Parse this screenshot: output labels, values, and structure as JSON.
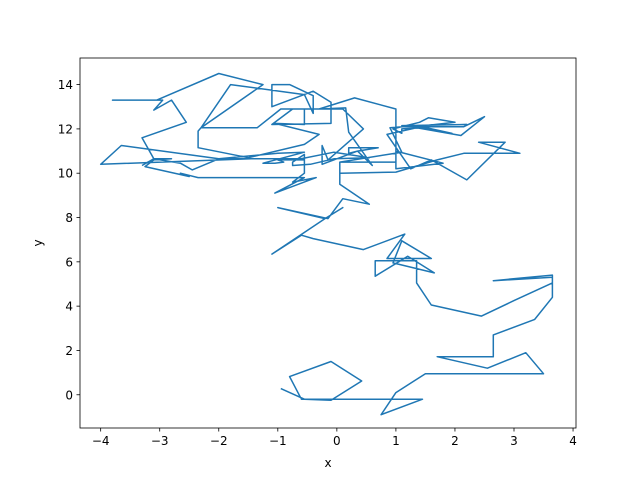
{
  "chart_data": {
    "type": "line",
    "title": "",
    "xlabel": "x",
    "ylabel": "y",
    "xlim": [
      -4.35,
      4.05
    ],
    "ylim": [
      -1.5,
      15.2
    ],
    "xticks": [
      -4,
      -3,
      -2,
      -1,
      0,
      1,
      2,
      3,
      4
    ],
    "yticks": [
      0,
      2,
      4,
      6,
      8,
      10,
      12,
      14
    ],
    "grid": false,
    "series": [
      {
        "color": "#1f77b4",
        "points": [
          [
            -0.95,
            0.28
          ],
          [
            -0.55,
            -0.2
          ],
          [
            -0.1,
            -0.25
          ],
          [
            0.42,
            0.62
          ],
          [
            -0.1,
            1.5
          ],
          [
            -0.8,
            0.82
          ],
          [
            -0.6,
            -0.2
          ],
          [
            1.45,
            -0.2
          ],
          [
            0.75,
            -0.9
          ],
          [
            1.0,
            0.1
          ],
          [
            1.5,
            0.95
          ],
          [
            3.5,
            0.95
          ],
          [
            3.2,
            1.9
          ],
          [
            2.55,
            1.2
          ],
          [
            1.7,
            1.72
          ],
          [
            2.65,
            1.72
          ],
          [
            2.65,
            2.7
          ],
          [
            3.35,
            3.4
          ],
          [
            3.65,
            4.4
          ],
          [
            3.65,
            5.3
          ],
          [
            2.65,
            5.15
          ],
          [
            3.65,
            5.4
          ],
          [
            3.65,
            5.05
          ],
          [
            3.0,
            4.25
          ],
          [
            2.45,
            3.55
          ],
          [
            1.6,
            4.05
          ],
          [
            1.35,
            5.05
          ],
          [
            1.35,
            6.05
          ],
          [
            0.65,
            6.05
          ],
          [
            0.65,
            5.35
          ],
          [
            1.2,
            6.25
          ],
          [
            1.65,
            5.5
          ],
          [
            0.95,
            5.95
          ],
          [
            1.1,
            6.95
          ],
          [
            1.6,
            6.15
          ],
          [
            0.85,
            6.15
          ],
          [
            1.15,
            7.25
          ],
          [
            0.45,
            6.55
          ],
          [
            -0.4,
            7.05
          ],
          [
            -0.6,
            7.2
          ],
          [
            -1.1,
            6.35
          ],
          [
            -0.2,
            7.95
          ],
          [
            0.1,
            8.45
          ],
          [
            -0.2,
            7.95
          ],
          [
            -1.0,
            8.45
          ],
          [
            -0.15,
            7.95
          ],
          [
            0.1,
            8.85
          ],
          [
            0.55,
            8.6
          ],
          [
            0.05,
            9.5
          ],
          [
            0.05,
            10.5
          ],
          [
            1.1,
            10.95
          ],
          [
            0.9,
            12.05
          ],
          [
            1.35,
            12.15
          ],
          [
            1.95,
            11.8
          ],
          [
            1.45,
            12.05
          ],
          [
            1.1,
            12.0
          ],
          [
            1.1,
            11.8
          ],
          [
            0.95,
            12.0
          ],
          [
            1.4,
            12.3
          ],
          [
            1.55,
            12.5
          ],
          [
            2.0,
            12.3
          ],
          [
            1.5,
            12.15
          ],
          [
            1.1,
            12.15
          ],
          [
            2.2,
            12.2
          ],
          [
            1.15,
            12.15
          ],
          [
            1.15,
            12.1
          ],
          [
            2.15,
            12.1
          ],
          [
            2.5,
            12.55
          ],
          [
            2.1,
            11.7
          ],
          [
            1.35,
            12.05
          ],
          [
            0.85,
            11.75
          ],
          [
            1.25,
            10.2
          ],
          [
            1.6,
            10.6
          ],
          [
            2.2,
            9.7
          ],
          [
            2.85,
            11.4
          ],
          [
            2.4,
            11.4
          ],
          [
            3.1,
            10.9
          ],
          [
            2.15,
            10.9
          ],
          [
            1.7,
            10.6
          ],
          [
            1.0,
            10.05
          ],
          [
            0.05,
            10.0
          ],
          [
            0.05,
            10.5
          ],
          [
            1.0,
            10.5
          ],
          [
            1.0,
            11.0
          ],
          [
            1.8,
            10.45
          ],
          [
            1.0,
            10.2
          ],
          [
            1.0,
            12.05
          ],
          [
            1.0,
            12.9
          ],
          [
            0.3,
            13.4
          ],
          [
            -0.3,
            12.9
          ],
          [
            0.15,
            12.95
          ],
          [
            0.2,
            11.85
          ],
          [
            0.6,
            10.35
          ],
          [
            0.35,
            11.0
          ],
          [
            0.2,
            10.9
          ],
          [
            0.2,
            11.15
          ],
          [
            0.7,
            11.15
          ],
          [
            0.35,
            11.0
          ],
          [
            -0.25,
            10.4
          ],
          [
            -0.25,
            11.25
          ],
          [
            -0.15,
            10.6
          ],
          [
            0.45,
            12.0
          ],
          [
            0.1,
            12.9
          ],
          [
            -0.3,
            12.9
          ],
          [
            -0.75,
            12.9
          ],
          [
            -1.1,
            12.2
          ],
          [
            -0.1,
            12.25
          ],
          [
            -0.1,
            13.2
          ],
          [
            -0.4,
            13.7
          ],
          [
            -1.1,
            13.0
          ],
          [
            -1.1,
            14.0
          ],
          [
            -0.8,
            14.0
          ],
          [
            -0.4,
            13.5
          ],
          [
            -0.4,
            12.7
          ],
          [
            -0.55,
            13.55
          ],
          [
            -1.8,
            14.0
          ],
          [
            -2.3,
            12.05
          ],
          [
            -1.35,
            12.05
          ],
          [
            -0.95,
            12.9
          ],
          [
            -0.55,
            12.9
          ],
          [
            -0.55,
            12.2
          ],
          [
            -1.05,
            12.25
          ],
          [
            -0.3,
            11.75
          ],
          [
            -0.55,
            11.3
          ],
          [
            -1.5,
            10.7
          ],
          [
            -2.35,
            11.15
          ],
          [
            -2.35,
            11.9
          ],
          [
            -2.3,
            12.05
          ],
          [
            -1.25,
            14.0
          ],
          [
            -2.0,
            14.5
          ],
          [
            -3.05,
            13.3
          ],
          [
            -3.8,
            13.3
          ],
          [
            -2.95,
            13.3
          ],
          [
            -3.1,
            12.85
          ],
          [
            -2.8,
            13.3
          ],
          [
            -2.55,
            12.3
          ],
          [
            -3.3,
            11.6
          ],
          [
            -3.1,
            10.65
          ],
          [
            -2.8,
            10.65
          ],
          [
            -3.1,
            10.6
          ],
          [
            -3.25,
            10.3
          ],
          [
            -2.5,
            9.85
          ],
          [
            -2.65,
            10.0
          ],
          [
            -2.35,
            9.8
          ],
          [
            -0.55,
            9.8
          ],
          [
            -1.05,
            9.1
          ],
          [
            -0.35,
            9.8
          ],
          [
            -0.75,
            9.6
          ],
          [
            -0.55,
            10.0
          ],
          [
            -0.55,
            10.85
          ],
          [
            -0.75,
            10.5
          ],
          [
            -0.75,
            10.35
          ],
          [
            -0.45,
            10.4
          ],
          [
            -0.05,
            10.65
          ],
          [
            0.55,
            10.7
          ],
          [
            -0.05,
            10.95
          ],
          [
            -0.7,
            10.6
          ],
          [
            -0.55,
            10.6
          ],
          [
            -1.0,
            10.6
          ],
          [
            -0.9,
            10.5
          ],
          [
            -1.05,
            10.45
          ],
          [
            -1.25,
            10.45
          ],
          [
            -0.55,
            10.95
          ],
          [
            -1.0,
            10.9
          ],
          [
            -2.0,
            10.65
          ],
          [
            -3.65,
            11.25
          ],
          [
            -4.0,
            10.4
          ],
          [
            -1.45,
            10.65
          ],
          [
            -0.6,
            10.65
          ],
          [
            -2.0,
            10.65
          ],
          [
            -2.45,
            10.15
          ],
          [
            -2.65,
            10.45
          ],
          [
            -3.1,
            10.65
          ],
          [
            -3.3,
            10.35
          ]
        ]
      }
    ]
  }
}
